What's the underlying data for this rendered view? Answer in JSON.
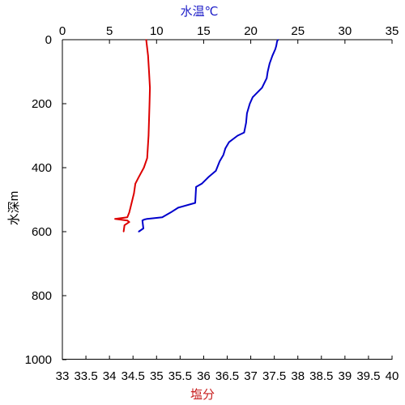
{
  "chart_data": {
    "type": "line",
    "axes": {
      "depth": {
        "label": "水深m",
        "range": [
          0,
          1000
        ],
        "ticks": [
          0,
          200,
          400,
          600,
          800,
          1000
        ],
        "inverted": true,
        "color": "#000000"
      },
      "temperature": {
        "label": "水温℃",
        "position": "top",
        "range": [
          0,
          35
        ],
        "ticks": [
          0,
          5,
          10,
          15,
          20,
          25,
          30,
          35
        ],
        "color": "#1e1ec8"
      },
      "salinity": {
        "label": "塩分",
        "position": "bottom",
        "range": [
          33,
          40
        ],
        "ticks": [
          "33",
          "33.5",
          "34",
          "34.5",
          "35",
          "35.5",
          "36",
          "36.5",
          "37",
          "37.5",
          "38",
          "38.5",
          "39",
          "39.5",
          "40"
        ],
        "color": "#c81e1e"
      }
    },
    "grid": false,
    "legend": "none",
    "series": [
      {
        "axis": "temperature",
        "color": "#0000cc",
        "points": [
          [
            22.9,
            0
          ],
          [
            22.8,
            5
          ],
          [
            22.7,
            20
          ],
          [
            22.6,
            30
          ],
          [
            22.3,
            50
          ],
          [
            22.0,
            75
          ],
          [
            21.8,
            100
          ],
          [
            21.7,
            120
          ],
          [
            21.2,
            150
          ],
          [
            20.7,
            165
          ],
          [
            20.2,
            180
          ],
          [
            19.9,
            200
          ],
          [
            19.6,
            230
          ],
          [
            19.5,
            260
          ],
          [
            19.3,
            290
          ],
          [
            18.6,
            300
          ],
          [
            17.7,
            320
          ],
          [
            17.3,
            340
          ],
          [
            17.1,
            360
          ],
          [
            16.7,
            380
          ],
          [
            16.3,
            410
          ],
          [
            15.5,
            430
          ],
          [
            14.8,
            450
          ],
          [
            14.2,
            460
          ],
          [
            14.1,
            510
          ],
          [
            12.3,
            525
          ],
          [
            11.5,
            540
          ],
          [
            10.6,
            555
          ],
          [
            9.0,
            560
          ],
          [
            8.7,
            562
          ],
          [
            8.5,
            565
          ],
          [
            8.6,
            590
          ],
          [
            8.1,
            600
          ]
        ]
      },
      {
        "axis": "salinity",
        "color": "#dd0000",
        "points": [
          [
            34.78,
            0
          ],
          [
            34.82,
            50
          ],
          [
            34.84,
            100
          ],
          [
            34.86,
            150
          ],
          [
            34.85,
            200
          ],
          [
            34.83,
            300
          ],
          [
            34.8,
            370
          ],
          [
            34.73,
            400
          ],
          [
            34.62,
            430
          ],
          [
            34.55,
            450
          ],
          [
            34.52,
            480
          ],
          [
            34.47,
            510
          ],
          [
            34.42,
            540
          ],
          [
            34.38,
            555
          ],
          [
            34.12,
            560
          ],
          [
            34.38,
            565
          ],
          [
            34.42,
            570
          ],
          [
            34.32,
            580
          ],
          [
            34.3,
            600
          ]
        ]
      }
    ]
  }
}
